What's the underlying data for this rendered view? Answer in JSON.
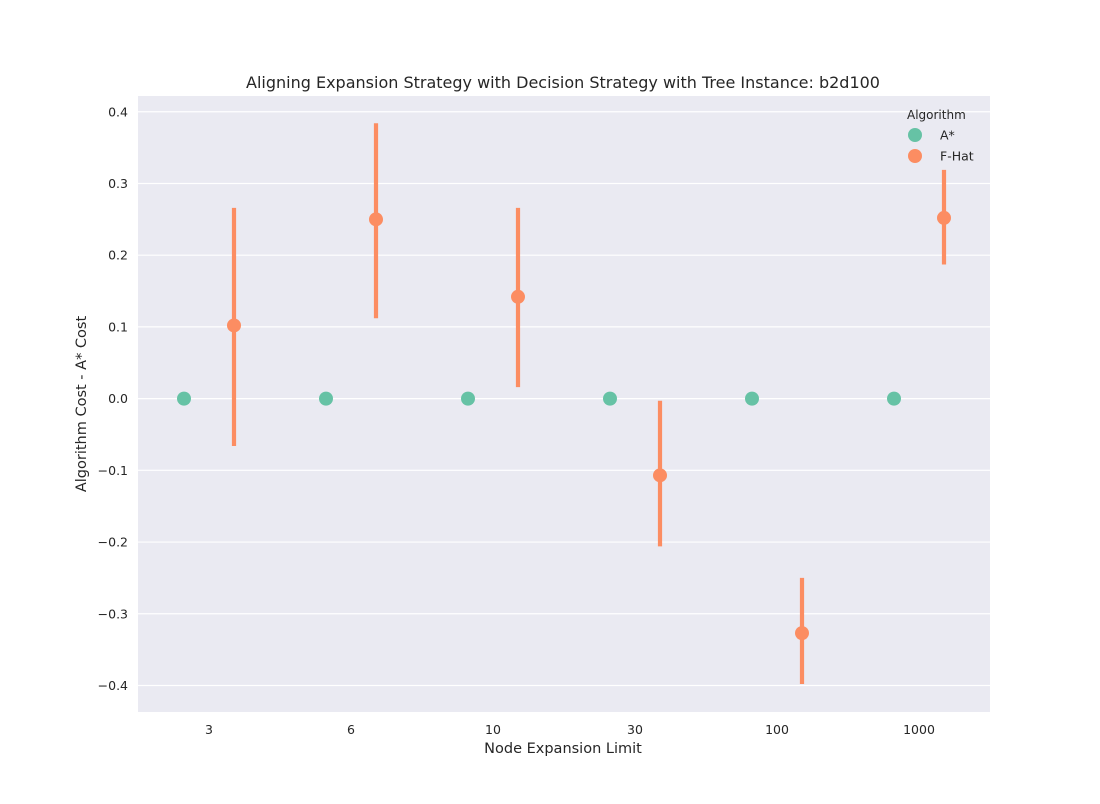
{
  "chart_data": {
    "type": "scatter",
    "title": "Aligning Expansion Strategy with Decision Strategy with Tree Instance: b2d100",
    "xlabel": "Node Expansion Limit",
    "ylabel": "Algorithm Cost - A* Cost",
    "categories": [
      "3",
      "6",
      "10",
      "30",
      "100",
      "1000"
    ],
    "ylim": [
      -0.437,
      0.422
    ],
    "yticks": [
      -0.4,
      -0.3,
      -0.2,
      -0.1,
      0.0,
      0.1,
      0.2,
      0.3,
      0.4
    ],
    "ytick_labels": [
      "−0.4",
      "−0.3",
      "−0.2",
      "−0.1",
      "0.0",
      "0.1",
      "0.2",
      "0.3",
      "0.4"
    ],
    "grid": true,
    "background": "#eaeaf2",
    "legend": {
      "title": "Algorithm",
      "position": "top-right"
    },
    "series": [
      {
        "name": "A*",
        "color": "#66c2a5",
        "values": [
          0.0,
          0.0,
          0.0,
          0.0,
          0.0,
          0.0
        ],
        "error_low": [
          null,
          null,
          null,
          null,
          null,
          null
        ],
        "error_high": [
          null,
          null,
          null,
          null,
          null,
          null
        ]
      },
      {
        "name": "F-Hat",
        "color": "#fc8d62",
        "values": [
          0.102,
          0.25,
          0.142,
          -0.107,
          -0.327,
          0.252
        ],
        "error_low": [
          -0.066,
          0.112,
          0.016,
          -0.206,
          -0.398,
          0.187
        ],
        "error_high": [
          0.266,
          0.384,
          0.266,
          -0.003,
          -0.25,
          0.319
        ]
      }
    ]
  }
}
